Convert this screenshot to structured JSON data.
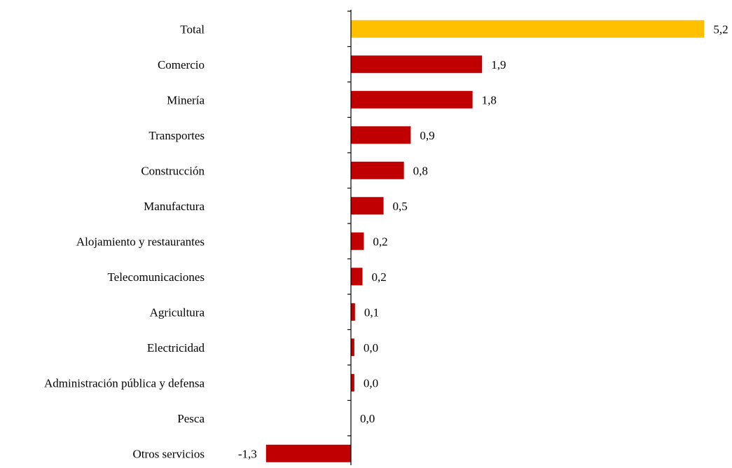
{
  "chart_data": {
    "type": "bar",
    "orientation": "horizontal",
    "categories": [
      "Total",
      "Comercio",
      "Minería",
      "Transportes",
      "Construcción",
      "Manufactura",
      "Alojamiento y restaurantes",
      "Telecomunicaciones",
      "Agricultura",
      "Electricidad",
      "Administración pública y defensa",
      "Pesca",
      "Otros servicios"
    ],
    "values": [
      5.2,
      1.93,
      1.79,
      0.88,
      0.78,
      0.48,
      0.19,
      0.17,
      0.06,
      0.05,
      0.05,
      0.0,
      -1.25
    ],
    "value_labels": [
      "5,2",
      "1,9",
      "1,8",
      "0,9",
      "0,8",
      "0,5",
      "0,2",
      "0,2",
      "0,1",
      "0,0",
      "0,0",
      "0,0",
      "-1,3"
    ],
    "colors": {
      "highlight": "#FFC000",
      "default": "#C00000"
    },
    "highlight_index": 0,
    "title": "",
    "xlabel": "",
    "ylabel": "",
    "grid": false,
    "legend": "none"
  }
}
